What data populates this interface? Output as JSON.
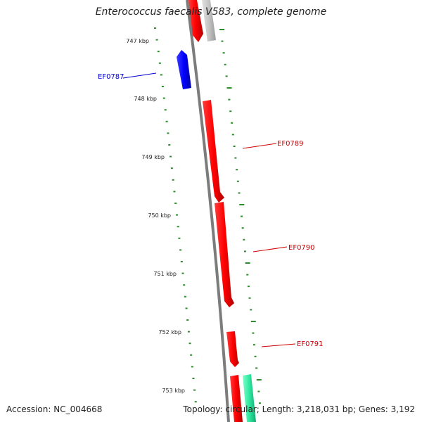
{
  "title": "Enterococcus faecalis V583, complete genome",
  "footer": {
    "accession": "Accession: NC_004668",
    "summary": "Topology: circular; Length: 3,218,031 bp; Genes: 3,192"
  },
  "colors": {
    "backbone": "#8a8a8a",
    "tick": "#2e8b2e",
    "forward_gene": "#ff0000",
    "reverse_gene": "#0000ff",
    "neighbor_gene_gray": "#bdbdbd",
    "neighbor_gene_green": "#2ee8a0"
  },
  "scale": {
    "unit": "kbp",
    "labels": [
      "747 kbp",
      "748 kbp",
      "749 kbp",
      "750 kbp",
      "751 kbp",
      "752 kbp",
      "753 kbp"
    ]
  },
  "genes": [
    {
      "id": "EF0787",
      "strand": "reverse",
      "color": "#0000ff",
      "label_color": "#0000cc"
    },
    {
      "id": "EF0789",
      "strand": "forward",
      "color": "#ff0000",
      "label_color": "#cc0000"
    },
    {
      "id": "EF0790",
      "strand": "forward",
      "color": "#ff0000",
      "label_color": "#cc0000"
    },
    {
      "id": "EF0791",
      "strand": "forward",
      "color": "#ff0000",
      "label_color": "#cc0000"
    }
  ]
}
